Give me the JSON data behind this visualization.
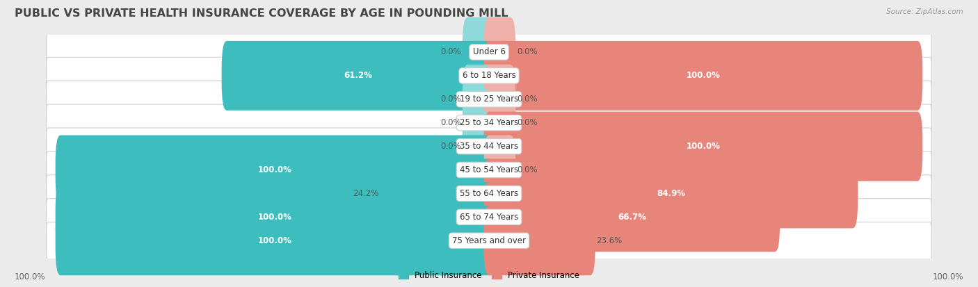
{
  "title": "PUBLIC VS PRIVATE HEALTH INSURANCE COVERAGE BY AGE IN POUNDING MILL",
  "source": "Source: ZipAtlas.com",
  "categories": [
    "Under 6",
    "6 to 18 Years",
    "19 to 25 Years",
    "25 to 34 Years",
    "35 to 44 Years",
    "45 to 54 Years",
    "55 to 64 Years",
    "65 to 74 Years",
    "75 Years and over"
  ],
  "public": [
    0.0,
    61.2,
    0.0,
    0.0,
    0.0,
    100.0,
    24.2,
    100.0,
    100.0
  ],
  "private": [
    0.0,
    100.0,
    0.0,
    0.0,
    100.0,
    0.0,
    84.9,
    66.7,
    23.6
  ],
  "public_color": "#3dbdbd",
  "private_color": "#e8857a",
  "public_color_light": "#8dd8d8",
  "private_color_light": "#f0b0aa",
  "public_label": "Public Insurance",
  "private_label": "Private Insurance",
  "background_color": "#ebebeb",
  "row_bg_color": "#f5f5f5",
  "row_border_color": "#d0d0d0",
  "axis_label_left": "100.0%",
  "axis_label_right": "100.0%",
  "title_fontsize": 11.5,
  "label_fontsize": 8.5,
  "tick_fontsize": 8.5,
  "value_fontsize": 8.5,
  "stub_size": 5.0
}
